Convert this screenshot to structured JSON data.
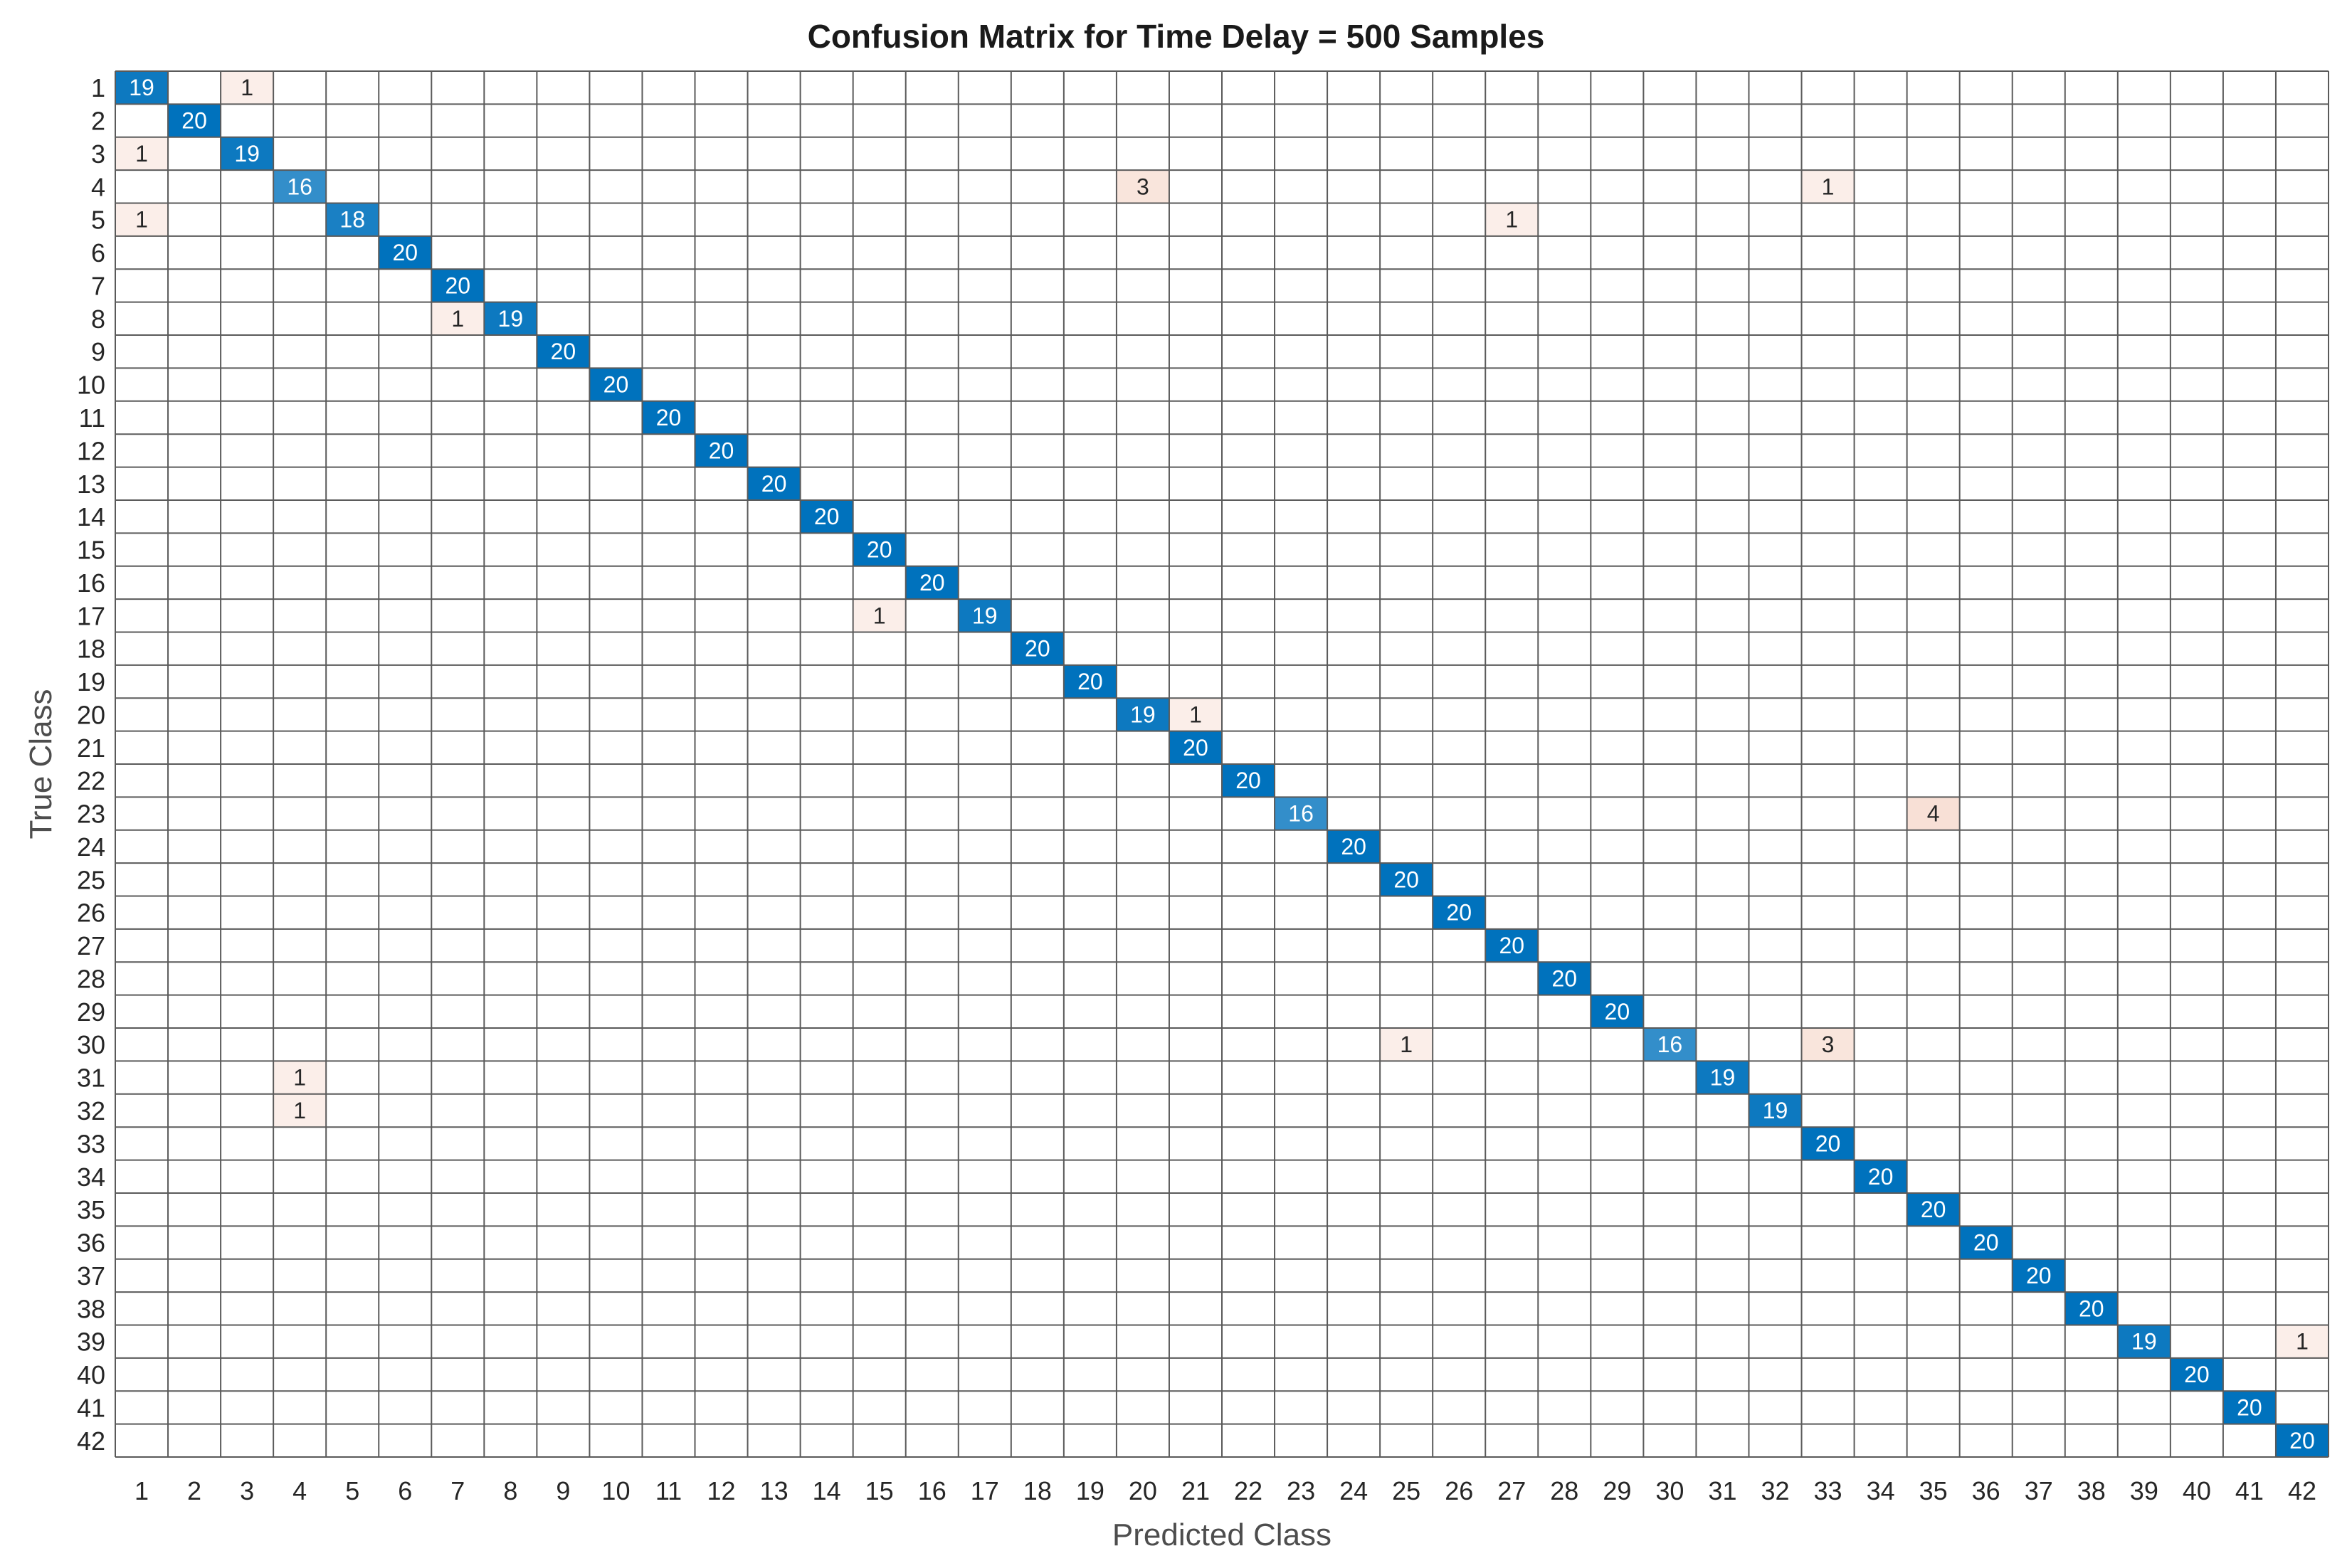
{
  "chart_data": {
    "type": "heatmap",
    "title": "Confusion Matrix for Time Delay = 500 Samples",
    "xlabel": "Predicted Class",
    "ylabel": "True Class",
    "n_classes": 42,
    "row_labels": [
      "1",
      "2",
      "3",
      "4",
      "5",
      "6",
      "7",
      "8",
      "9",
      "10",
      "11",
      "12",
      "13",
      "14",
      "15",
      "16",
      "17",
      "18",
      "19",
      "20",
      "21",
      "22",
      "23",
      "24",
      "25",
      "26",
      "27",
      "28",
      "29",
      "30",
      "31",
      "32",
      "33",
      "34",
      "35",
      "36",
      "37",
      "38",
      "39",
      "40",
      "41",
      "42"
    ],
    "col_labels": [
      "1",
      "2",
      "3",
      "4",
      "5",
      "6",
      "7",
      "8",
      "9",
      "10",
      "11",
      "12",
      "13",
      "14",
      "15",
      "16",
      "17",
      "18",
      "19",
      "20",
      "21",
      "22",
      "23",
      "24",
      "25",
      "26",
      "27",
      "28",
      "29",
      "30",
      "31",
      "32",
      "33",
      "34",
      "35",
      "36",
      "37",
      "38",
      "39",
      "40",
      "41",
      "42"
    ],
    "cells": [
      {
        "true": 1,
        "pred": 1,
        "value": 19
      },
      {
        "true": 1,
        "pred": 3,
        "value": 1
      },
      {
        "true": 2,
        "pred": 2,
        "value": 20
      },
      {
        "true": 3,
        "pred": 1,
        "value": 1
      },
      {
        "true": 3,
        "pred": 3,
        "value": 19
      },
      {
        "true": 4,
        "pred": 4,
        "value": 16
      },
      {
        "true": 4,
        "pred": 20,
        "value": 3
      },
      {
        "true": 4,
        "pred": 33,
        "value": 1
      },
      {
        "true": 5,
        "pred": 1,
        "value": 1
      },
      {
        "true": 5,
        "pred": 5,
        "value": 18
      },
      {
        "true": 5,
        "pred": 27,
        "value": 1
      },
      {
        "true": 6,
        "pred": 6,
        "value": 20
      },
      {
        "true": 7,
        "pred": 7,
        "value": 20
      },
      {
        "true": 8,
        "pred": 7,
        "value": 1
      },
      {
        "true": 8,
        "pred": 8,
        "value": 19
      },
      {
        "true": 9,
        "pred": 9,
        "value": 20
      },
      {
        "true": 10,
        "pred": 10,
        "value": 20
      },
      {
        "true": 11,
        "pred": 11,
        "value": 20
      },
      {
        "true": 12,
        "pred": 12,
        "value": 20
      },
      {
        "true": 13,
        "pred": 13,
        "value": 20
      },
      {
        "true": 14,
        "pred": 14,
        "value": 20
      },
      {
        "true": 15,
        "pred": 15,
        "value": 20
      },
      {
        "true": 16,
        "pred": 16,
        "value": 20
      },
      {
        "true": 17,
        "pred": 15,
        "value": 1
      },
      {
        "true": 17,
        "pred": 17,
        "value": 19
      },
      {
        "true": 18,
        "pred": 18,
        "value": 20
      },
      {
        "true": 19,
        "pred": 19,
        "value": 20
      },
      {
        "true": 20,
        "pred": 20,
        "value": 19
      },
      {
        "true": 20,
        "pred": 21,
        "value": 1
      },
      {
        "true": 21,
        "pred": 21,
        "value": 20
      },
      {
        "true": 22,
        "pred": 22,
        "value": 20
      },
      {
        "true": 23,
        "pred": 23,
        "value": 16
      },
      {
        "true": 23,
        "pred": 35,
        "value": 4
      },
      {
        "true": 24,
        "pred": 24,
        "value": 20
      },
      {
        "true": 25,
        "pred": 25,
        "value": 20
      },
      {
        "true": 26,
        "pred": 26,
        "value": 20
      },
      {
        "true": 27,
        "pred": 27,
        "value": 20
      },
      {
        "true": 28,
        "pred": 28,
        "value": 20
      },
      {
        "true": 29,
        "pred": 29,
        "value": 20
      },
      {
        "true": 30,
        "pred": 25,
        "value": 1
      },
      {
        "true": 30,
        "pred": 30,
        "value": 16
      },
      {
        "true": 30,
        "pred": 33,
        "value": 3
      },
      {
        "true": 31,
        "pred": 4,
        "value": 1
      },
      {
        "true": 31,
        "pred": 31,
        "value": 19
      },
      {
        "true": 32,
        "pred": 4,
        "value": 1
      },
      {
        "true": 32,
        "pred": 32,
        "value": 19
      },
      {
        "true": 33,
        "pred": 33,
        "value": 20
      },
      {
        "true": 34,
        "pred": 34,
        "value": 20
      },
      {
        "true": 35,
        "pred": 35,
        "value": 20
      },
      {
        "true": 36,
        "pred": 36,
        "value": 20
      },
      {
        "true": 37,
        "pred": 37,
        "value": 20
      },
      {
        "true": 38,
        "pred": 38,
        "value": 20
      },
      {
        "true": 39,
        "pred": 39,
        "value": 19
      },
      {
        "true": 39,
        "pred": 42,
        "value": 1
      },
      {
        "true": 40,
        "pred": 40,
        "value": 20
      },
      {
        "true": 41,
        "pred": 41,
        "value": 20
      },
      {
        "true": 42,
        "pred": 42,
        "value": 20
      }
    ],
    "colors": {
      "diagonal_high": "#0072bd",
      "diagonal_low": "#ffffff",
      "offdiagonal_high": "#d95319",
      "offdiagonal_low": "#ffffff",
      "grid_line": "#5a5a5a",
      "light_text": "#ffffff",
      "dark_text": "#262626"
    },
    "grid": true,
    "legend": "none"
  }
}
